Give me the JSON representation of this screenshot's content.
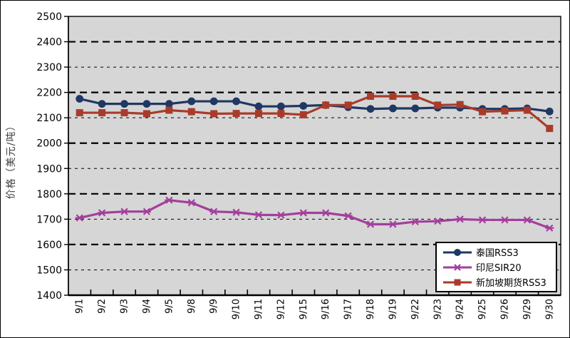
{
  "chart_data": {
    "type": "line",
    "title": "",
    "xlabel": "",
    "ylabel": "价格（美元/吨）",
    "ylim": [
      1400,
      2500
    ],
    "ytick_step": 100,
    "yticks": [
      2500,
      2400,
      2300,
      2200,
      2100,
      2000,
      1900,
      1800,
      1700,
      1600,
      1500,
      1400
    ],
    "grid": "horizontal dashed, alternating heavy/light",
    "legend_position": "bottom-right inside plot",
    "plot_bg": "#d6d6d6",
    "axis_color": "#000000",
    "categories": [
      "9/1",
      "9/2",
      "9/3",
      "9/4",
      "9/5",
      "9/8",
      "9/9",
      "9/10",
      "9/11",
      "9/12",
      "9/15",
      "9/16",
      "9/17",
      "9/18",
      "9/19",
      "9/22",
      "9/23",
      "9/24",
      "9/25",
      "9/26",
      "9/29",
      "9/30"
    ],
    "series": [
      {
        "name": "泰国RSS3",
        "id": "thailand-rss3",
        "color": "#1f3864",
        "marker": "circle",
        "values": [
          2175,
          2155,
          2155,
          2155,
          2155,
          2165,
          2165,
          2165,
          2145,
          2145,
          2147,
          2150,
          2142,
          2135,
          2137,
          2137,
          2140,
          2140,
          2135,
          2135,
          2137,
          2125
        ]
      },
      {
        "name": "印尼SIR20",
        "id": "indonesia-sir20",
        "color": "#a23f9c",
        "marker": "star",
        "values": [
          1705,
          1725,
          1730,
          1730,
          1775,
          1765,
          1730,
          1727,
          1717,
          1716,
          1725,
          1725,
          1713,
          1680,
          1680,
          1690,
          1692,
          1700,
          1697,
          1697,
          1697,
          1665
        ]
      },
      {
        "name": "新加坡期货RSS3",
        "id": "singapore-futures-rss3",
        "color": "#a93b2b",
        "marker": "square",
        "values": [
          2120,
          2120,
          2120,
          2116,
          2130,
          2124,
          2116,
          2117,
          2117,
          2117,
          2112,
          2150,
          2150,
          2185,
          2185,
          2185,
          2150,
          2152,
          2124,
          2127,
          2130,
          2058
        ]
      }
    ]
  }
}
